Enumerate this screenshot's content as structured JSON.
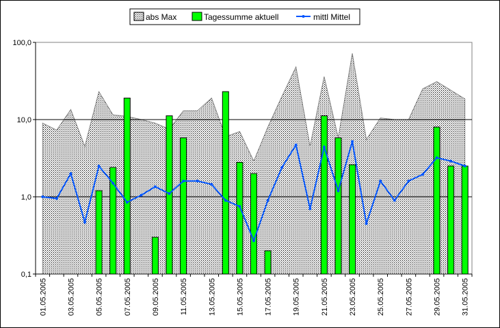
{
  "chart_data": {
    "type": "bar",
    "y_scale": "log",
    "ylim": [
      0.1,
      100
    ],
    "y_ticks": [
      "0,1",
      "1,0",
      "10,0",
      "100,0"
    ],
    "x_tick_labels": [
      "01.05.2005",
      "03.05.2005",
      "05.05.2005",
      "07.05.2005",
      "09.05.2005",
      "11.05.2005",
      "13.05.2005",
      "15.05.2005",
      "17.05.2005",
      "19.05.2005",
      "21.05.2005",
      "23.05.2005",
      "25.05.2005",
      "27.05.2005",
      "29.05.2005",
      "31.05.2005"
    ],
    "categories": [
      "01.05.2005",
      "02.05.2005",
      "03.05.2005",
      "04.05.2005",
      "05.05.2005",
      "06.05.2005",
      "07.05.2005",
      "08.05.2005",
      "09.05.2005",
      "10.05.2005",
      "11.05.2005",
      "12.05.2005",
      "13.05.2005",
      "14.05.2005",
      "15.05.2005",
      "16.05.2005",
      "17.05.2005",
      "18.05.2005",
      "19.05.2005",
      "20.05.2005",
      "21.05.2005",
      "22.05.2005",
      "23.05.2005",
      "24.05.2005",
      "25.05.2005",
      "26.05.2005",
      "27.05.2005",
      "28.05.2005",
      "29.05.2005",
      "30.05.2005",
      "31.05.2005"
    ],
    "legend_position": "top",
    "grid": "major horizontal",
    "series": [
      {
        "name": "abs Max",
        "kind": "area",
        "pattern": "dotted",
        "values": [
          9,
          7.3,
          13.5,
          4.5,
          23,
          11.5,
          11,
          10,
          9,
          7.5,
          13,
          13,
          19,
          6,
          7,
          2.9,
          8,
          20,
          48,
          4.5,
          36,
          5.8,
          72,
          5.5,
          10.5,
          10,
          10,
          25,
          31,
          24,
          18.5
        ]
      },
      {
        "name": "Tagessumme aktuell",
        "kind": "bar",
        "color": "#00ff00",
        "values": [
          null,
          null,
          null,
          null,
          1.2,
          2.4,
          19,
          null,
          0.3,
          11.2,
          5.8,
          null,
          null,
          23,
          2.8,
          2.0,
          0.2,
          null,
          null,
          null,
          11.2,
          5.8,
          2.6,
          null,
          null,
          null,
          null,
          null,
          8.0,
          2.5,
          2.5
        ]
      },
      {
        "name": "mittl Mittel",
        "kind": "line",
        "color": "#0055ff",
        "values": [
          1.0,
          0.95,
          2.0,
          0.47,
          2.5,
          1.5,
          0.85,
          1.05,
          1.35,
          1.1,
          1.6,
          1.6,
          1.45,
          0.9,
          0.75,
          0.27,
          0.9,
          2.4,
          4.7,
          0.7,
          4.4,
          1.2,
          5.2,
          0.45,
          1.6,
          0.9,
          1.6,
          1.95,
          3.2,
          2.9,
          2.5
        ]
      }
    ]
  }
}
